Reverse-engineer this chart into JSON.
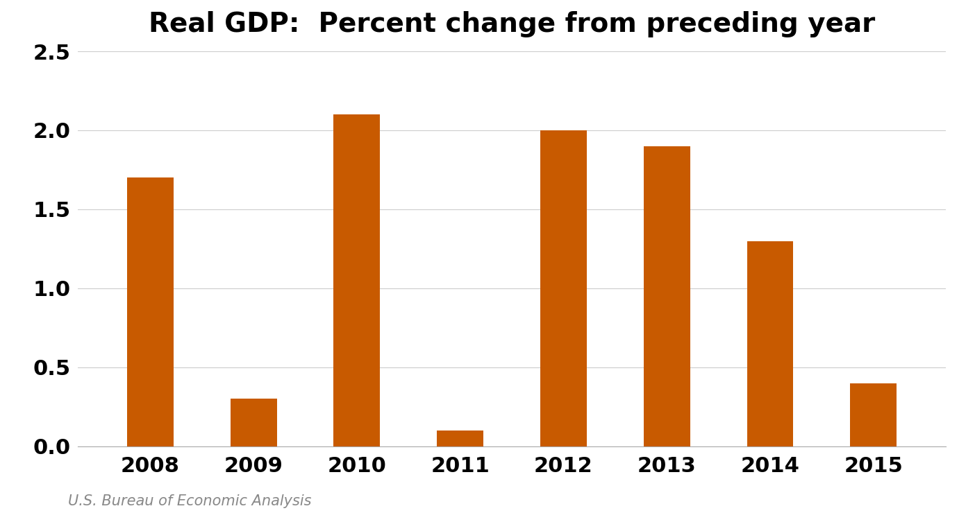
{
  "title": "Real GDP:  Percent change from preceding year",
  "categories": [
    "2008",
    "2009",
    "2010",
    "2011",
    "2012",
    "2013",
    "2014",
    "2015"
  ],
  "values": [
    1.7,
    0.3,
    2.1,
    0.1,
    2.0,
    1.9,
    1.3,
    0.4
  ],
  "bar_color": "#C85A00",
  "background_color": "#ffffff",
  "ylim": [
    0,
    2.5
  ],
  "yticks": [
    0.0,
    0.5,
    1.0,
    1.5,
    2.0,
    2.5
  ],
  "title_fontsize": 28,
  "tick_fontsize": 22,
  "source_text": "U.S. Bureau of Economic Analysis",
  "source_fontsize": 15,
  "grid_color": "#cccccc",
  "bar_width": 0.45,
  "xlim_left": -0.7,
  "xlim_right": 7.7
}
